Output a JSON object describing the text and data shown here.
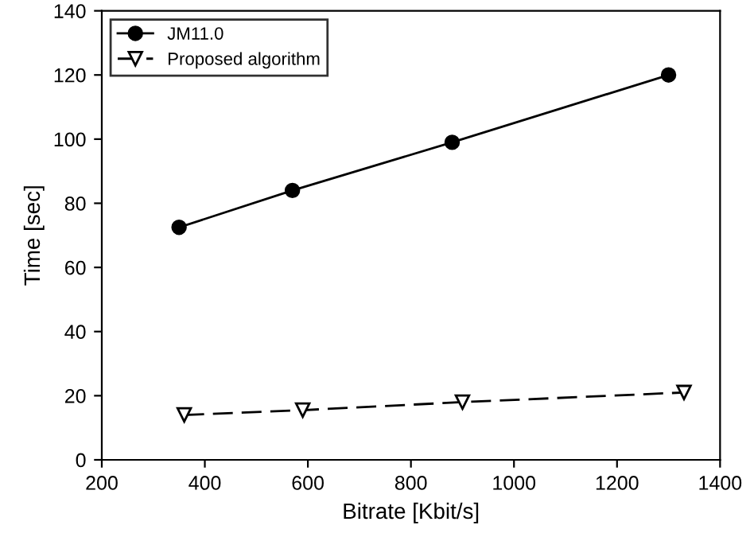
{
  "chart_data": {
    "type": "line",
    "xlabel": "Bitrate [Kbit/s]",
    "ylabel": "Time [sec]",
    "xlim": [
      200,
      1400
    ],
    "ylim": [
      0,
      140
    ],
    "xticks": [
      200,
      400,
      600,
      800,
      1000,
      1200,
      1400
    ],
    "yticks": [
      0,
      20,
      40,
      60,
      80,
      100,
      120,
      140
    ],
    "grid": false,
    "legend": "top left",
    "series": [
      {
        "name": "JM11.0",
        "color": "#000000",
        "x": [
          350,
          570,
          880,
          1300
        ],
        "values": [
          72.5,
          84,
          99,
          120
        ],
        "marker": "circle",
        "line_style": "solid"
      },
      {
        "name": "Proposed algorithm",
        "color": "#000000",
        "x": [
          360,
          590,
          900,
          1330
        ],
        "values": [
          14,
          15.5,
          18,
          21
        ],
        "marker": "triangle",
        "line_style": "dashed"
      }
    ]
  }
}
